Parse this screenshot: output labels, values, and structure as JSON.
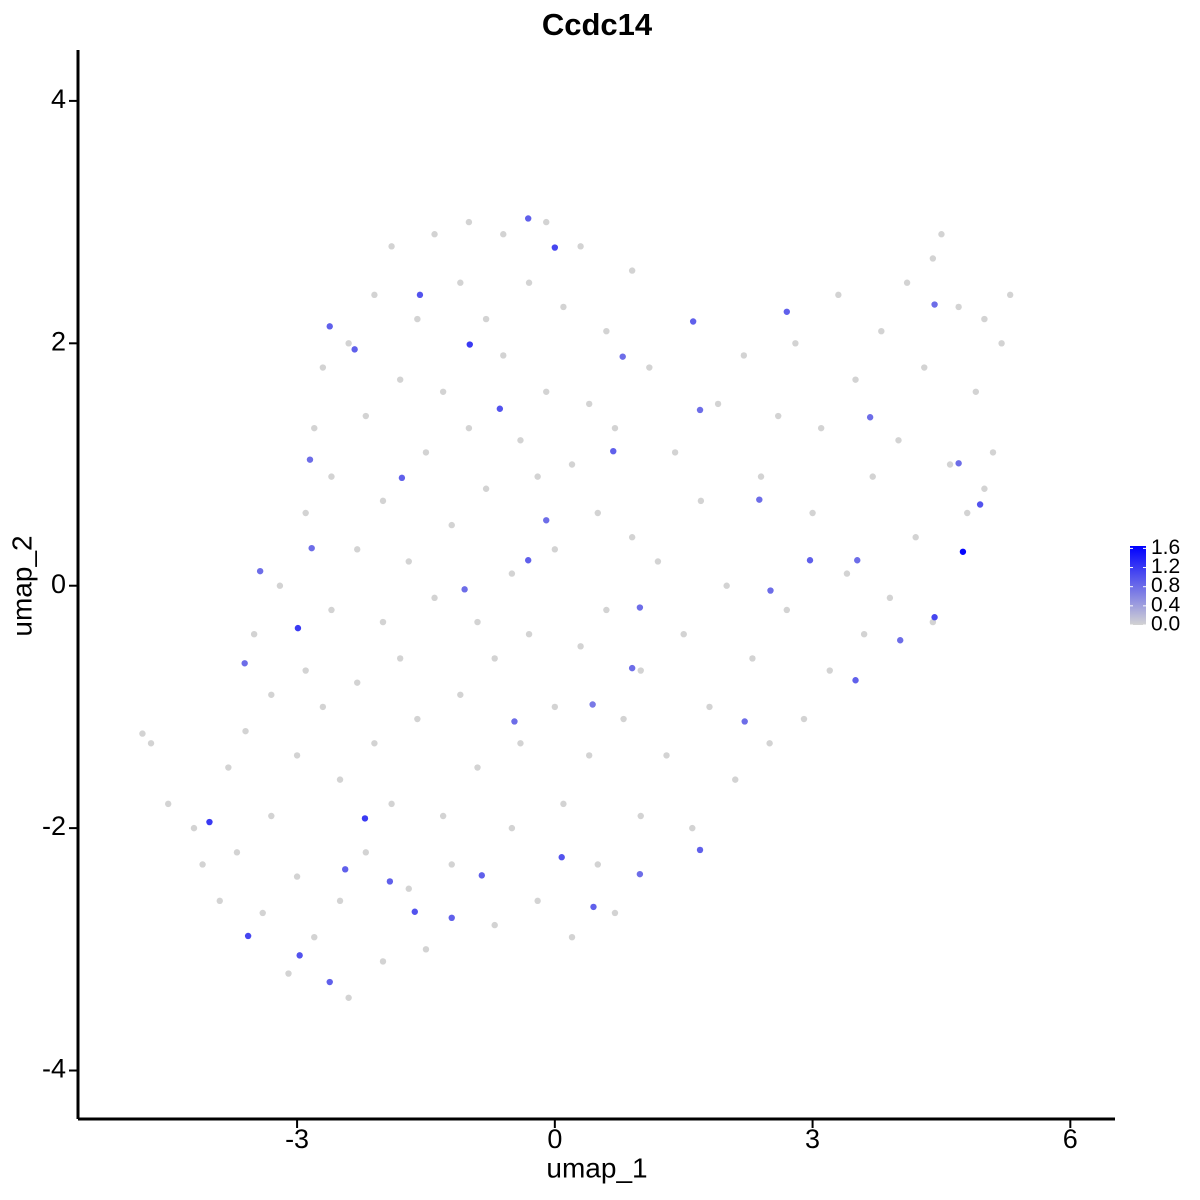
{
  "chart_data": {
    "type": "scatter",
    "title": "Ccdc14",
    "xlabel": "umap_1",
    "ylabel": "umap_2",
    "xlim": [
      -5.55,
      6.52
    ],
    "ylim": [
      -4.4,
      4.42
    ],
    "xticks": [
      -3,
      0,
      3,
      6
    ],
    "yticks": [
      -4,
      -2,
      0,
      2,
      4
    ],
    "color_low": "#d3d3d3",
    "color_high": "#0000ff",
    "colorlim": [
      0,
      1.65
    ],
    "colorticks": [
      {
        "value": 0,
        "label": "0.0"
      },
      0.4,
      0.8,
      1.2,
      1.6
    ],
    "x": [
      -4.8,
      -4.7,
      -4.5,
      -4.2,
      -4.1,
      -3.9,
      -3.8,
      -3.7,
      -3.6,
      -3.5,
      -3.4,
      -3.3,
      -3.3,
      -3.2,
      -3.1,
      -3.0,
      -3.0,
      -2.9,
      -2.9,
      -2.8,
      -2.8,
      -2.7,
      -2.7,
      -2.6,
      -2.6,
      -2.5,
      -2.5,
      -2.4,
      -2.4,
      -2.3,
      -2.3,
      -2.2,
      -2.2,
      -2.1,
      -2.1,
      -2.0,
      -2.0,
      -2.0,
      -1.9,
      -1.9,
      -1.8,
      -1.8,
      -1.7,
      -1.7,
      -1.6,
      -1.6,
      -1.5,
      -1.5,
      -1.4,
      -1.4,
      -1.3,
      -1.3,
      -1.2,
      -1.2,
      -1.1,
      -1.1,
      -1.0,
      -1.0,
      -0.9,
      -0.9,
      -0.8,
      -0.8,
      -0.7,
      -0.7,
      -0.6,
      -0.6,
      -0.5,
      -0.5,
      -0.4,
      -0.4,
      -0.3,
      -0.3,
      -0.2,
      -0.2,
      -0.1,
      -0.1,
      0.0,
      0.0,
      0.1,
      0.1,
      0.2,
      0.2,
      0.3,
      0.3,
      0.4,
      0.4,
      0.5,
      0.5,
      0.6,
      0.6,
      0.7,
      0.7,
      0.8,
      0.9,
      0.9,
      1.0,
      1.0,
      1.1,
      1.2,
      1.3,
      1.4,
      1.5,
      1.6,
      1.7,
      1.8,
      1.9,
      2.0,
      2.1,
      2.2,
      2.3,
      2.4,
      2.5,
      2.6,
      2.7,
      2.8,
      2.9,
      3.0,
      3.1,
      3.2,
      3.3,
      3.4,
      3.5,
      3.6,
      3.7,
      3.8,
      3.9,
      4.0,
      4.1,
      4.2,
      4.3,
      4.4,
      4.5,
      4.6,
      4.7,
      4.8,
      4.9,
      5.0,
      5.1,
      5.2,
      5.3,
      5.0,
      4.4,
      -0.99,
      -0.64,
      -2.62,
      -1.57,
      -0.31,
      0.0,
      0.79,
      0.68,
      1.69,
      2.7,
      4.42,
      4.75,
      4.95,
      4.42,
      3.52,
      2.97,
      2.51,
      0.99,
      0.9,
      0.44,
      0.08,
      0.45,
      -0.85,
      -1.63,
      -2.21,
      -2.99,
      -3.61,
      -4.02,
      -3.57,
      -2.97,
      -2.62,
      -2.44,
      -1.92,
      -1.2,
      -0.47,
      -0.31,
      -0.1,
      -1.05,
      -1.78,
      -2.33,
      -2.85,
      -2.83,
      -3.43,
      1.69,
      0.99,
      2.21,
      3.5,
      4.02,
      3.67,
      4.7,
      1.61,
      2.38
    ],
    "y": [
      -1.22,
      -1.3,
      -1.8,
      -2.0,
      -2.3,
      -2.6,
      -1.5,
      -2.2,
      -1.2,
      -0.4,
      -2.7,
      -1.9,
      -0.9,
      0.0,
      -3.2,
      -2.4,
      -1.4,
      -0.7,
      0.6,
      1.3,
      -2.9,
      -1.0,
      1.8,
      -0.2,
      0.9,
      -1.6,
      -2.6,
      2.0,
      -3.4,
      0.3,
      -0.8,
      1.4,
      -2.2,
      2.4,
      -1.3,
      -0.3,
      0.7,
      -3.1,
      2.8,
      -1.8,
      1.7,
      -0.6,
      0.2,
      -2.5,
      2.2,
      -1.1,
      1.1,
      -3.0,
      2.9,
      -0.1,
      -1.9,
      1.6,
      0.5,
      -2.3,
      2.5,
      -0.9,
      3.0,
      1.3,
      -1.5,
      -0.3,
      2.2,
      0.8,
      -2.8,
      -0.6,
      2.9,
      1.9,
      0.1,
      -2.0,
      1.2,
      -1.3,
      2.5,
      -0.4,
      0.9,
      -2.6,
      3.0,
      1.6,
      -1.0,
      0.3,
      2.3,
      -1.8,
      1.0,
      -2.9,
      -0.5,
      2.8,
      1.5,
      -1.4,
      -2.3,
      0.6,
      2.1,
      -0.2,
      -2.7,
      1.3,
      -1.1,
      0.4,
      2.6,
      -1.9,
      -0.7,
      1.8,
      0.2,
      -1.4,
      1.1,
      -0.4,
      -2.0,
      0.7,
      -1.0,
      1.5,
      0.0,
      -1.6,
      1.9,
      -0.6,
      0.9,
      -1.3,
      1.4,
      -0.2,
      2.0,
      -1.1,
      0.6,
      1.3,
      -0.7,
      2.4,
      0.1,
      1.7,
      -0.4,
      0.9,
      2.1,
      -0.1,
      1.2,
      2.5,
      0.4,
      1.8,
      -0.3,
      2.9,
      1.0,
      2.3,
      0.6,
      1.6,
      2.2,
      1.1,
      2.0,
      2.4,
      0.8,
      2.7,
      1.99,
      1.46,
      2.14,
      2.4,
      3.03,
      2.79,
      1.89,
      1.11,
      1.45,
      2.26,
      2.32,
      0.28,
      0.67,
      -0.26,
      0.21,
      0.21,
      -0.04,
      -0.18,
      -0.68,
      -0.98,
      -2.24,
      -2.65,
      -2.39,
      -2.69,
      -1.92,
      -0.35,
      -0.64,
      -1.95,
      -2.89,
      -3.05,
      -3.27,
      -2.34,
      -2.44,
      -2.74,
      -1.12,
      0.21,
      0.54,
      -0.03,
      0.89,
      1.95,
      1.04,
      0.31,
      0.12,
      -2.18,
      -2.38,
      -1.12,
      -0.78,
      -0.45,
      1.39,
      1.01,
      2.18,
      0.71
    ],
    "expression": [
      0,
      0,
      0,
      0,
      0,
      0,
      0,
      0,
      0,
      0,
      0,
      0,
      0,
      0,
      0,
      0,
      0,
      0,
      0,
      0,
      0,
      0,
      0,
      0,
      0,
      0,
      0,
      0,
      0,
      0,
      0,
      0,
      0,
      0,
      0,
      0,
      0,
      0,
      0,
      0,
      0,
      0,
      0,
      0,
      0,
      0,
      0,
      0,
      0,
      0,
      0,
      0,
      0,
      0,
      0,
      0,
      0,
      0,
      0,
      0,
      0,
      0,
      0,
      0,
      0,
      0,
      0,
      0,
      0,
      0,
      0,
      0,
      0,
      0,
      0,
      0,
      0,
      0,
      0,
      0,
      0,
      0,
      0,
      0,
      0,
      0,
      0,
      0,
      0,
      0,
      0,
      0,
      0,
      0,
      0,
      0,
      0,
      0,
      0,
      0,
      0,
      0,
      0,
      0,
      0,
      0,
      0,
      0,
      0,
      0,
      0,
      0,
      0,
      0,
      0,
      0,
      0,
      0,
      0,
      0,
      0,
      0,
      0,
      0,
      0,
      0,
      0,
      0,
      0,
      0,
      0,
      0,
      0,
      0,
      0,
      0,
      0,
      0,
      0,
      0,
      0,
      0,
      1.2,
      1.0,
      0.9,
      1.0,
      0.9,
      1.1,
      0.8,
      0.9,
      0.8,
      0.9,
      0.8,
      1.6,
      1.0,
      1.1,
      0.8,
      0.9,
      0.8,
      0.8,
      0.8,
      0.7,
      1.0,
      0.9,
      0.9,
      1.0,
      1.2,
      1.2,
      0.8,
      1.2,
      1.1,
      1.0,
      0.9,
      0.9,
      0.9,
      0.9,
      0.8,
      0.9,
      0.8,
      0.8,
      0.9,
      0.9,
      0.8,
      0.8,
      0.8,
      0.9,
      0.8,
      0.8,
      0.9,
      0.8,
      0.8,
      0.8,
      0.9,
      0.8
    ]
  }
}
